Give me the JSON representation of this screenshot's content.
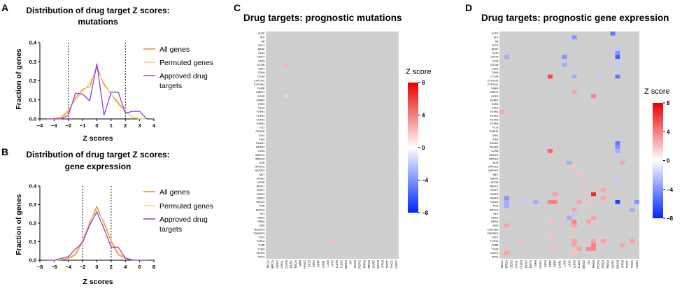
{
  "chart_data": [
    {
      "panel": "A",
      "type": "line",
      "title": "Distribution of drug target Z scores: mutations",
      "title_lines": [
        "Distribution of drug target Z scores:",
        "mutations"
      ],
      "xlabel": "Z scores",
      "ylabel": "Fraction of genes",
      "xlim": [
        -4,
        4
      ],
      "ylim": [
        0,
        0.4
      ],
      "xticks": [
        -4,
        -3,
        -2,
        -1,
        0,
        1,
        2,
        3,
        4
      ],
      "yticks": [
        0.0,
        0.1,
        0.2,
        0.3,
        0.4
      ],
      "vlines": [
        -2,
        2
      ],
      "series": [
        {
          "name": "All genes",
          "color": "#e8901c",
          "x": [
            -3.5,
            -2.5,
            -2,
            -1.5,
            -1,
            -0.5,
            0,
            0.5,
            1,
            1.5,
            2,
            2.5,
            3,
            3.5
          ],
          "y": [
            0,
            0.005,
            0.04,
            0.11,
            0.155,
            0.17,
            0.275,
            0.18,
            0.13,
            0.08,
            0.04,
            0.01,
            0,
            0
          ]
        },
        {
          "name": "Permuted genes",
          "color": "#f6d07a",
          "x": [
            -3.5,
            -2.5,
            -2,
            -1.5,
            -1,
            -0.5,
            0,
            0.5,
            1,
            1.5,
            2,
            2.5,
            3,
            3.5
          ],
          "y": [
            0,
            0.01,
            0.05,
            0.1,
            0.14,
            0.19,
            0.26,
            0.19,
            0.13,
            0.09,
            0.04,
            0.01,
            0,
            0
          ]
        },
        {
          "name": "Approved drug targets",
          "color": "#8a3df0",
          "x": [
            -3.5,
            -2.5,
            -2,
            -1.5,
            -1,
            -0.5,
            0,
            0.5,
            1,
            1.5,
            2,
            2.5,
            3,
            3.5
          ],
          "y": [
            0,
            0,
            0.02,
            0.135,
            0.13,
            0.095,
            0.29,
            0.02,
            0.14,
            0.14,
            0.03,
            0.04,
            0.04,
            0
          ]
        }
      ]
    },
    {
      "panel": "B",
      "type": "line",
      "title": "Distribution of drug target Z scores: gene expression",
      "title_lines": [
        "Distribution of drug target Z scores:",
        "gene expression"
      ],
      "xlabel": "Z scores",
      "ylabel": "Fraction of genes",
      "xlim": [
        -8,
        8
      ],
      "ylim": [
        0,
        0.4
      ],
      "xticks": [
        -8,
        -6,
        -4,
        -2,
        0,
        2,
        4,
        6,
        8
      ],
      "yticks": [
        0.0,
        0.1,
        0.2,
        0.3,
        0.4
      ],
      "vlines": [
        -2,
        2
      ],
      "series": [
        {
          "name": "All genes",
          "color": "#e8901c",
          "x": [
            -7,
            -6,
            -5,
            -4,
            -3,
            -2,
            -1,
            0,
            1,
            2,
            3,
            4,
            5,
            6,
            7
          ],
          "y": [
            0,
            0,
            0.002,
            0.01,
            0.03,
            0.1,
            0.2,
            0.29,
            0.2,
            0.1,
            0.03,
            0.01,
            0.002,
            0,
            0
          ]
        },
        {
          "name": "Permuted genes",
          "color": "#f6d07a",
          "x": [
            -7,
            -6,
            -5,
            -4,
            -3,
            -2,
            -1,
            0,
            1,
            2,
            3,
            4,
            5,
            6,
            7
          ],
          "y": [
            0,
            0,
            0.004,
            0.014,
            0.04,
            0.11,
            0.21,
            0.27,
            0.21,
            0.11,
            0.04,
            0.014,
            0.004,
            0,
            0
          ]
        },
        {
          "name": "Approved drug targets",
          "color": "#8a3df0",
          "x": [
            -7,
            -6,
            -5,
            -4,
            -3,
            -2,
            -1,
            0,
            1,
            2,
            3,
            4,
            5,
            6,
            7
          ],
          "y": [
            0,
            0,
            0.01,
            0.02,
            0.06,
            0.095,
            0.19,
            0.26,
            0.17,
            0.07,
            0.07,
            0.01,
            0,
            0,
            0
          ]
        }
      ]
    },
    {
      "panel": "C",
      "type": "heatmap",
      "title": "Drug targets: prognostic mutations",
      "rows": [
        "ACPP",
        "ALK",
        "AR",
        "BCL2",
        "BRAF",
        "CD19",
        "CD274",
        "CD33",
        "CD79B",
        "CDK4",
        "CDK6",
        "CTLA4",
        "CYP17A1",
        "CYP19A1",
        "DHFR",
        "DNMT1",
        "EGFR",
        "ERBB2",
        "ESR1",
        "EZH2",
        "FGFR1",
        "FGFR2",
        "FGFR3",
        "FGFR4",
        "FLT3",
        "GNRHR",
        "IDH1",
        "IDH2",
        "IFNAR1",
        "IFNAR2",
        "IL2RA",
        "IMPDH1",
        "IMPDH2",
        "KDR",
        "MAP2K1",
        "MAP2K2",
        "MET",
        "MS4A1",
        "MTOR",
        "NR3C1",
        "PARP1",
        "PARP2",
        "PARP3",
        "PDCD1",
        "PGR",
        "PIK3CA",
        "RET",
        "RRM1",
        "RRM2",
        "SMO",
        "TACSTD2",
        "TNFRSF8",
        "TOP1",
        "TOP2A",
        "TUBB",
        "TYMS",
        "VEGFA",
        "XPO1"
      ],
      "columns": [
        "BLCA",
        "BRCA",
        "CESC",
        "CHOL",
        "COAD",
        "DLBC",
        "ESCA",
        "GBM",
        "HNSC",
        "KICH",
        "KIRC",
        "KIRP",
        "LAML",
        "LGG",
        "LIHC",
        "LUAD",
        "LUSC",
        "MESO",
        "OV",
        "PAAD",
        "PCPG",
        "PRAD",
        "READ",
        "SARC",
        "SKCM",
        "STAD",
        "TGCT",
        "THCA",
        "UCEC"
      ],
      "colorbar": {
        "title": "Z score",
        "ticks": [
          8,
          4,
          0,
          -4,
          -8
        ],
        "min": -8,
        "max": 8
      },
      "cells": [
        {
          "row": "CD79B",
          "col": "COAD",
          "z": 2.5
        },
        {
          "row": "EGFR",
          "col": "COAD",
          "z": 1.5
        },
        {
          "row": "TOP2A",
          "col": "LIHC",
          "z": 2.0
        }
      ]
    },
    {
      "panel": "D",
      "type": "heatmap",
      "title": "Drug targets: prognostic gene expression",
      "rows": [
        "ACPP",
        "ALK",
        "AR",
        "BCL2",
        "BRAF",
        "CD19",
        "CD274",
        "CD33",
        "CD79B",
        "CDK4",
        "CDK6",
        "CTLA4",
        "CYP17A1",
        "CYP19A1",
        "DHFR",
        "DNMT1",
        "EGFR",
        "ERBB2",
        "ESR1",
        "EZH2",
        "FGFR1",
        "FGFR2",
        "FGFR3",
        "FGFR4",
        "FLT3",
        "GNRHR",
        "IDH1",
        "IDH2",
        "IFNAR1",
        "IFNAR2",
        "IL2RA",
        "IMPDH1",
        "IMPDH2",
        "KDR",
        "MAP2K1",
        "MAP2K2",
        "MET",
        "MS4A1",
        "MTOR",
        "NR3C1",
        "PARP1",
        "PARP2",
        "PARP3",
        "PDCD1",
        "PGR",
        "PIK3CA",
        "RET",
        "RRM1",
        "RRM2",
        "SMO",
        "TACSTD2",
        "TNFRSF8",
        "TOP1",
        "TOP2A",
        "TUBB",
        "TYMS",
        "VEGFA",
        "XPO1"
      ],
      "columns": [
        "BLCA",
        "BRCA",
        "CESC",
        "CHOL",
        "COAD",
        "DLBC",
        "ESCA",
        "GBM",
        "HNSC",
        "KICH",
        "KIRC",
        "KIRP",
        "LAML",
        "LGG",
        "LIHC",
        "LUAD",
        "LUSC",
        "MESO",
        "OV",
        "PAAD",
        "PCPG",
        "PRAD",
        "READ",
        "SARC",
        "SKCM",
        "STAD",
        "TGCT",
        "THCA",
        "UCEC"
      ],
      "colorbar": {
        "title": "Z score",
        "ticks": [
          8,
          4,
          0,
          -4,
          -8
        ],
        "min": -8,
        "max": 8
      },
      "cells": [
        {
          "row": "ACPP",
          "col": "SARC",
          "z": -5
        },
        {
          "row": "ALK",
          "col": "LUAD",
          "z": -4
        },
        {
          "row": "BRAF",
          "col": "SKCM",
          "z": -2
        },
        {
          "row": "CD19",
          "col": "SKCM",
          "z": -4
        },
        {
          "row": "CD274",
          "col": "BRCA",
          "z": -3
        },
        {
          "row": "CD274",
          "col": "LGG",
          "z": -4
        },
        {
          "row": "CD274",
          "col": "SKCM",
          "z": -6
        },
        {
          "row": "CD79B",
          "col": "LGG",
          "z": -3
        },
        {
          "row": "CD79B",
          "col": "SKCM",
          "z": -2
        },
        {
          "row": "CTLA4",
          "col": "KIRC",
          "z": 6
        },
        {
          "row": "CTLA4",
          "col": "LUAD",
          "z": -3
        },
        {
          "row": "CTLA4",
          "col": "PCPG",
          "z": -2
        },
        {
          "row": "CTLA4",
          "col": "SKCM",
          "z": -5
        },
        {
          "row": "DNMT1",
          "col": "LUAD",
          "z": 3
        },
        {
          "row": "EGFR",
          "col": "CESC",
          "z": 2
        },
        {
          "row": "EGFR",
          "col": "PAAD",
          "z": 4
        },
        {
          "row": "FGFR1",
          "col": "BLCA",
          "z": 3
        },
        {
          "row": "IFNAR1",
          "col": "SKCM",
          "z": -5
        },
        {
          "row": "IFNAR2",
          "col": "SKCM",
          "z": -4
        },
        {
          "row": "IL2RA",
          "col": "KIRC",
          "z": 5
        },
        {
          "row": "IL2RA",
          "col": "SKCM",
          "z": -3
        },
        {
          "row": "KDR",
          "col": "LIHC",
          "z": -3
        },
        {
          "row": "KDR",
          "col": "STAD",
          "z": 3
        },
        {
          "row": "MAP2K1",
          "col": "LUAD",
          "z": 2
        },
        {
          "row": "MET",
          "col": "LUSC",
          "z": 2
        },
        {
          "row": "MS4A1",
          "col": "SKCM",
          "z": -2
        },
        {
          "row": "NR3C1",
          "col": "MESO",
          "z": 2
        },
        {
          "row": "PARP1",
          "col": "PRAD",
          "z": 3
        },
        {
          "row": "PARP2",
          "col": "PAAD",
          "z": 7
        },
        {
          "row": "PARP2",
          "col": "KIRP",
          "z": 3
        },
        {
          "row": "PARP3",
          "col": "BRCA",
          "z": -4
        },
        {
          "row": "PARP3",
          "col": "PRAD",
          "z": 3
        },
        {
          "row": "PDCD1",
          "col": "BRCA",
          "z": -3
        },
        {
          "row": "PDCD1",
          "col": "DLBC",
          "z": -2
        },
        {
          "row": "PDCD1",
          "col": "GBM",
          "z": -3
        },
        {
          "row": "PDCD1",
          "col": "KIRC",
          "z": 4
        },
        {
          "row": "PDCD1",
          "col": "KIRP",
          "z": 4
        },
        {
          "row": "PDCD1",
          "col": "LUSC",
          "z": 3
        },
        {
          "row": "PDCD1",
          "col": "OV",
          "z": 2
        },
        {
          "row": "PDCD1",
          "col": "SKCM",
          "z": -7
        },
        {
          "row": "PDCD1",
          "col": "UCEC",
          "z": -4
        },
        {
          "row": "PGR",
          "col": "BRCA",
          "z": -3
        },
        {
          "row": "PIK3CA",
          "col": "LUAD",
          "z": 3
        },
        {
          "row": "PIK3CA",
          "col": "THCA",
          "z": -3
        },
        {
          "row": "RET",
          "col": "LUAD",
          "z": -2
        },
        {
          "row": "RRM1",
          "col": "LIHC",
          "z": -3
        },
        {
          "row": "RRM1",
          "col": "PAAD",
          "z": 3
        },
        {
          "row": "RRM2",
          "col": "KIRC",
          "z": 2
        },
        {
          "row": "RRM2",
          "col": "LUAD",
          "z": 4
        },
        {
          "row": "RRM2",
          "col": "OV",
          "z": 3
        },
        {
          "row": "SMO",
          "col": "BRCA",
          "z": 3
        },
        {
          "row": "SMO",
          "col": "LUAD",
          "z": 3
        },
        {
          "row": "TOP1",
          "col": "KIRC",
          "z": 2
        },
        {
          "row": "TOP2A",
          "col": "LUAD",
          "z": 3
        },
        {
          "row": "TOP2A",
          "col": "COAD",
          "z": 2
        },
        {
          "row": "TOP2A",
          "col": "PAAD",
          "z": 3
        },
        {
          "row": "TOP2A",
          "col": "PRAD",
          "z": 3
        },
        {
          "row": "TOP2A",
          "col": "THCA",
          "z": 3
        },
        {
          "row": "TUBB",
          "col": "LUAD",
          "z": 3
        },
        {
          "row": "TUBB",
          "col": "PAAD",
          "z": 4
        },
        {
          "row": "TUBB",
          "col": "STAD",
          "z": 3
        },
        {
          "row": "TYMS",
          "col": "KIRC",
          "z": 2
        },
        {
          "row": "TYMS",
          "col": "LUSC",
          "z": 3
        },
        {
          "row": "TYMS",
          "col": "OV",
          "z": 4
        },
        {
          "row": "TYMS",
          "col": "PAAD",
          "z": 4
        },
        {
          "row": "VEGFA",
          "col": "BRCA",
          "z": 3
        },
        {
          "row": "VEGFA",
          "col": "LUAD",
          "z": 2
        }
      ]
    }
  ]
}
